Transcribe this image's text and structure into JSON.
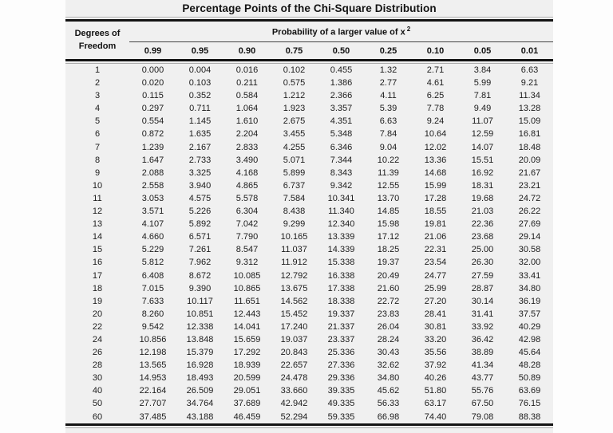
{
  "title": "Percentage Points of the Chi-Square Distribution",
  "colors": {
    "table_background": "#f0f0f0",
    "page_background": "#fdfdfd",
    "rule_heavy": "#131313",
    "rule_thin": "#ababab",
    "text": "#1c1c1c"
  },
  "table": {
    "df_header_line1": "Degrees of",
    "df_header_line2": "Freedom",
    "prob_header": "Probability of a larger value of x",
    "prob_header_sup": "2",
    "prob_columns": [
      "0.99",
      "0.95",
      "0.90",
      "0.75",
      "0.50",
      "0.25",
      "0.10",
      "0.05",
      "0.01"
    ],
    "rows": [
      {
        "df": "1",
        "values": [
          "0.000",
          "0.004",
          "0.016",
          "0.102",
          "0.455",
          "1.32",
          "2.71",
          "3.84",
          "6.63"
        ]
      },
      {
        "df": "2",
        "values": [
          "0.020",
          "0.103",
          "0.211",
          "0.575",
          "1.386",
          "2.77",
          "4.61",
          "5.99",
          "9.21"
        ]
      },
      {
        "df": "3",
        "values": [
          "0.115",
          "0.352",
          "0.584",
          "1.212",
          "2.366",
          "4.11",
          "6.25",
          "7.81",
          "11.34"
        ]
      },
      {
        "df": "4",
        "values": [
          "0.297",
          "0.711",
          "1.064",
          "1.923",
          "3.357",
          "5.39",
          "7.78",
          "9.49",
          "13.28"
        ]
      },
      {
        "df": "5",
        "values": [
          "0.554",
          "1.145",
          "1.610",
          "2.675",
          "4.351",
          "6.63",
          "9.24",
          "11.07",
          "15.09"
        ]
      },
      {
        "df": "6",
        "values": [
          "0.872",
          "1.635",
          "2.204",
          "3.455",
          "5.348",
          "7.84",
          "10.64",
          "12.59",
          "16.81"
        ]
      },
      {
        "df": "7",
        "values": [
          "1.239",
          "2.167",
          "2.833",
          "4.255",
          "6.346",
          "9.04",
          "12.02",
          "14.07",
          "18.48"
        ]
      },
      {
        "df": "8",
        "values": [
          "1.647",
          "2.733",
          "3.490",
          "5.071",
          "7.344",
          "10.22",
          "13.36",
          "15.51",
          "20.09"
        ]
      },
      {
        "df": "9",
        "values": [
          "2.088",
          "3.325",
          "4.168",
          "5.899",
          "8.343",
          "11.39",
          "14.68",
          "16.92",
          "21.67"
        ]
      },
      {
        "df": "10",
        "values": [
          "2.558",
          "3.940",
          "4.865",
          "6.737",
          "9.342",
          "12.55",
          "15.99",
          "18.31",
          "23.21"
        ]
      },
      {
        "df": "11",
        "values": [
          "3.053",
          "4.575",
          "5.578",
          "7.584",
          "10.341",
          "13.70",
          "17.28",
          "19.68",
          "24.72"
        ]
      },
      {
        "df": "12",
        "values": [
          "3.571",
          "5.226",
          "6.304",
          "8.438",
          "11.340",
          "14.85",
          "18.55",
          "21.03",
          "26.22"
        ]
      },
      {
        "df": "13",
        "values": [
          "4.107",
          "5.892",
          "7.042",
          "9.299",
          "12.340",
          "15.98",
          "19.81",
          "22.36",
          "27.69"
        ]
      },
      {
        "df": "14",
        "values": [
          "4.660",
          "6.571",
          "7.790",
          "10.165",
          "13.339",
          "17.12",
          "21.06",
          "23.68",
          "29.14"
        ]
      },
      {
        "df": "15",
        "values": [
          "5.229",
          "7.261",
          "8.547",
          "11.037",
          "14.339",
          "18.25",
          "22.31",
          "25.00",
          "30.58"
        ]
      },
      {
        "df": "16",
        "values": [
          "5.812",
          "7.962",
          "9.312",
          "11.912",
          "15.338",
          "19.37",
          "23.54",
          "26.30",
          "32.00"
        ]
      },
      {
        "df": "17",
        "values": [
          "6.408",
          "8.672",
          "10.085",
          "12.792",
          "16.338",
          "20.49",
          "24.77",
          "27.59",
          "33.41"
        ]
      },
      {
        "df": "18",
        "values": [
          "7.015",
          "9.390",
          "10.865",
          "13.675",
          "17.338",
          "21.60",
          "25.99",
          "28.87",
          "34.80"
        ]
      },
      {
        "df": "19",
        "values": [
          "7.633",
          "10.117",
          "11.651",
          "14.562",
          "18.338",
          "22.72",
          "27.20",
          "30.14",
          "36.19"
        ]
      },
      {
        "df": "20",
        "values": [
          "8.260",
          "10.851",
          "12.443",
          "15.452",
          "19.337",
          "23.83",
          "28.41",
          "31.41",
          "37.57"
        ]
      },
      {
        "df": "22",
        "values": [
          "9.542",
          "12.338",
          "14.041",
          "17.240",
          "21.337",
          "26.04",
          "30.81",
          "33.92",
          "40.29"
        ]
      },
      {
        "df": "24",
        "values": [
          "10.856",
          "13.848",
          "15.659",
          "19.037",
          "23.337",
          "28.24",
          "33.20",
          "36.42",
          "42.98"
        ]
      },
      {
        "df": "26",
        "values": [
          "12.198",
          "15.379",
          "17.292",
          "20.843",
          "25.336",
          "30.43",
          "35.56",
          "38.89",
          "45.64"
        ]
      },
      {
        "df": "28",
        "values": [
          "13.565",
          "16.928",
          "18.939",
          "22.657",
          "27.336",
          "32.62",
          "37.92",
          "41.34",
          "48.28"
        ]
      },
      {
        "df": "30",
        "values": [
          "14.953",
          "18.493",
          "20.599",
          "24.478",
          "29.336",
          "34.80",
          "40.26",
          "43.77",
          "50.89"
        ]
      },
      {
        "df": "40",
        "values": [
          "22.164",
          "26.509",
          "29.051",
          "33.660",
          "39.335",
          "45.62",
          "51.80",
          "55.76",
          "63.69"
        ]
      },
      {
        "df": "50",
        "values": [
          "27.707",
          "34.764",
          "37.689",
          "42.942",
          "49.335",
          "56.33",
          "63.17",
          "67.50",
          "76.15"
        ]
      },
      {
        "df": "60",
        "values": [
          "37.485",
          "43.188",
          "46.459",
          "52.294",
          "59.335",
          "66.98",
          "74.40",
          "79.08",
          "88.38"
        ]
      }
    ]
  }
}
